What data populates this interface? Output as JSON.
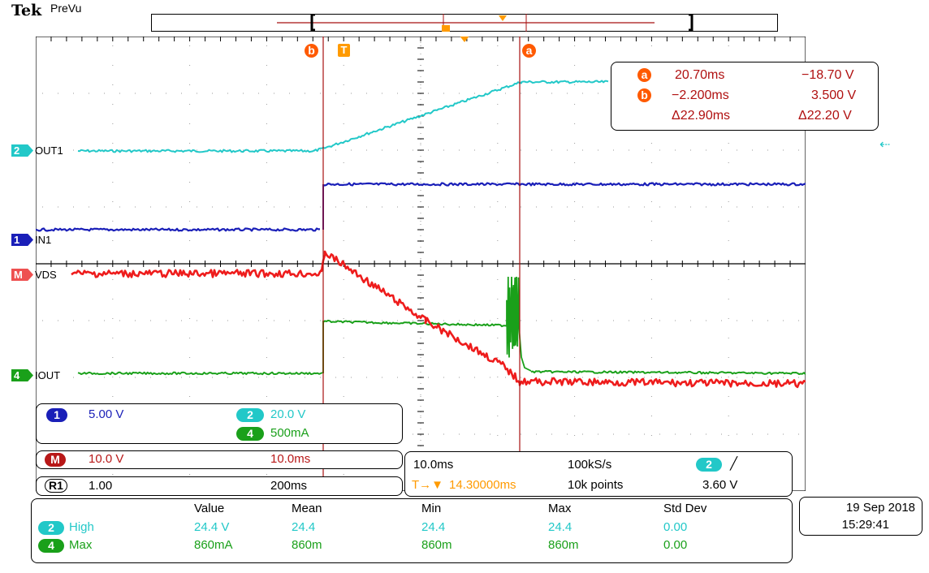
{
  "header": {
    "brand": "Tek",
    "mode": "PreVu"
  },
  "colors": {
    "ch1": "#1a1fb8",
    "ch2": "#22c8c8",
    "ch4": "#1aa01a",
    "math": "#ee1c1c",
    "ref": "#808080",
    "cursor": "#a81010",
    "trigger": "#ff9a00"
  },
  "channels": {
    "ch2_label": "OUT1",
    "ch1_label": "IN1",
    "math_label": "VDS",
    "ch4_label": "IOUT",
    "ch2_num": "2",
    "ch1_num": "1",
    "math_num": "M",
    "ch4_num": "4"
  },
  "cursor_markers": {
    "a": "a",
    "b": "b",
    "trigger": "T"
  },
  "cursor_readout": {
    "a_time": "20.70ms",
    "a_value": "−18.70 V",
    "b_time": "−2.200ms",
    "b_value": "3.500 V",
    "delta_time": "Δ22.90ms",
    "delta_value": "Δ22.20 V"
  },
  "scales": {
    "ch1_num": "1",
    "ch1": "5.00 V",
    "ch2_num": "2",
    "ch2": "20.0 V",
    "ch4_num": "4",
    "ch4": "500mA",
    "math_num": "M",
    "math": "10.0 V",
    "math_time": "10.0ms",
    "ref_num": "R1",
    "ref": "1.00",
    "ref_time": "200ms"
  },
  "acquisition": {
    "timebase": "10.0ms",
    "sample_rate": "100kS/s",
    "trigger_source": "2",
    "trigger_slope": "╱",
    "delay_prefix": "T→▼",
    "delay": "14.30000ms",
    "record_length": "10k points",
    "trigger_level": "3.60 V"
  },
  "measurements": {
    "headers": [
      "Value",
      "Mean",
      "Min",
      "Max",
      "Std Dev"
    ],
    "rows": [
      {
        "ch": "2",
        "name": "High",
        "values": [
          "24.4 V",
          "24.4",
          "24.4",
          "24.4",
          "0.00"
        ]
      },
      {
        "ch": "4",
        "name": "Max",
        "values": [
          "860mA",
          "860m",
          "860m",
          "860m",
          "0.00"
        ]
      }
    ]
  },
  "datetime": {
    "date": "19 Sep 2018",
    "time": "15:29:41"
  }
}
